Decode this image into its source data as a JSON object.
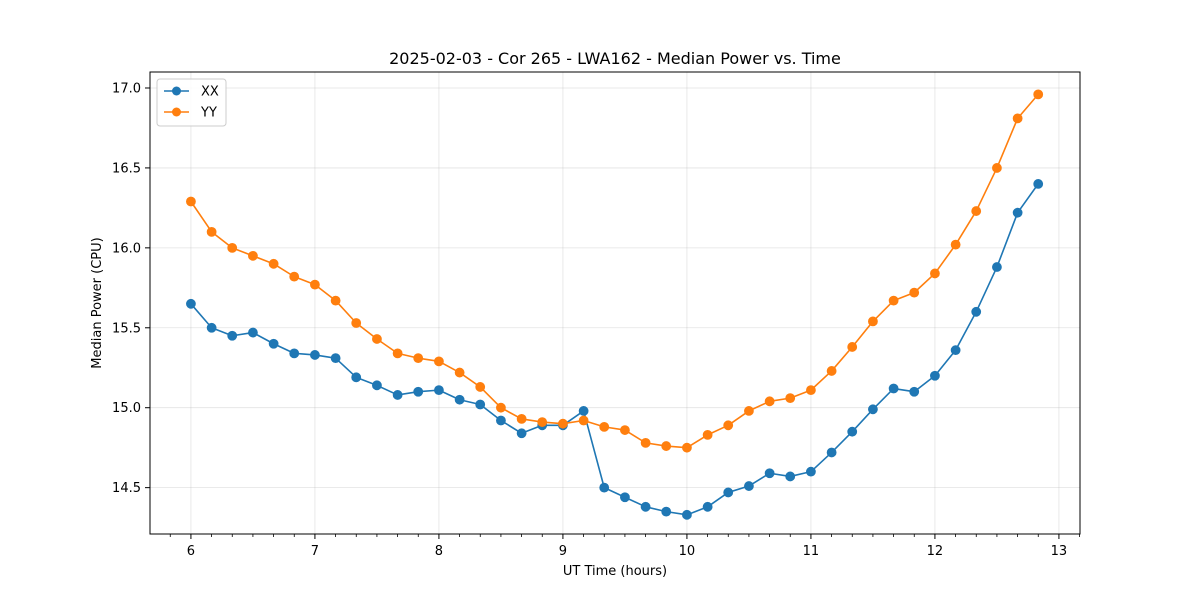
{
  "chart_data": {
    "type": "line",
    "title": "2025-02-03 - Cor 265 - LWA162 - Median Power vs. Time",
    "xlabel": "UT Time (hours)",
    "ylabel": "Median Power (CPU)",
    "xlim": [
      5.67,
      13.17
    ],
    "ylim": [
      14.21,
      17.1
    ],
    "xticks": [
      6,
      7,
      8,
      9,
      10,
      11,
      12,
      13
    ],
    "yticks": [
      14.5,
      15.0,
      15.5,
      16.0,
      16.5,
      17.0
    ],
    "xtick_labels": [
      "6",
      "7",
      "8",
      "9",
      "10",
      "11",
      "12",
      "13"
    ],
    "ytick_labels": [
      "14.5",
      "15.0",
      "15.5",
      "16.0",
      "16.5",
      "17.0"
    ],
    "grid": true,
    "legend_position": "top-left",
    "x": [
      6.0,
      6.167,
      6.333,
      6.5,
      6.667,
      6.833,
      7.0,
      7.167,
      7.333,
      7.5,
      7.667,
      7.833,
      8.0,
      8.167,
      8.333,
      8.5,
      8.667,
      8.833,
      9.0,
      9.167,
      9.333,
      9.5,
      9.667,
      9.833,
      10.0,
      10.167,
      10.333,
      10.5,
      10.667,
      10.833,
      11.0,
      11.167,
      11.333,
      11.5,
      11.667,
      11.833,
      12.0,
      12.167,
      12.333,
      12.5,
      12.667,
      12.833
    ],
    "series": [
      {
        "name": "XX",
        "color": "#1f77b4",
        "values": [
          15.65,
          15.5,
          15.45,
          15.47,
          15.4,
          15.34,
          15.33,
          15.31,
          15.19,
          15.14,
          15.08,
          15.1,
          15.11,
          15.05,
          15.02,
          14.92,
          14.84,
          14.89,
          14.89,
          14.98,
          14.5,
          14.44,
          14.38,
          14.35,
          14.33,
          14.38,
          14.47,
          14.51,
          14.59,
          14.57,
          14.6,
          14.72,
          14.85,
          14.99,
          15.12,
          15.1,
          15.2,
          15.36,
          15.6,
          15.88,
          16.22,
          16.4
        ]
      },
      {
        "name": "YY",
        "color": "#ff7f0e",
        "values": [
          16.29,
          16.1,
          16.0,
          15.95,
          15.9,
          15.82,
          15.77,
          15.67,
          15.53,
          15.43,
          15.34,
          15.31,
          15.29,
          15.22,
          15.13,
          15.0,
          14.93,
          14.91,
          14.9,
          14.92,
          14.88,
          14.86,
          14.78,
          14.76,
          14.75,
          14.83,
          14.89,
          14.98,
          15.04,
          15.06,
          15.11,
          15.23,
          15.38,
          15.54,
          15.67,
          15.72,
          15.84,
          16.02,
          16.23,
          16.5,
          16.81,
          16.96
        ]
      }
    ]
  }
}
